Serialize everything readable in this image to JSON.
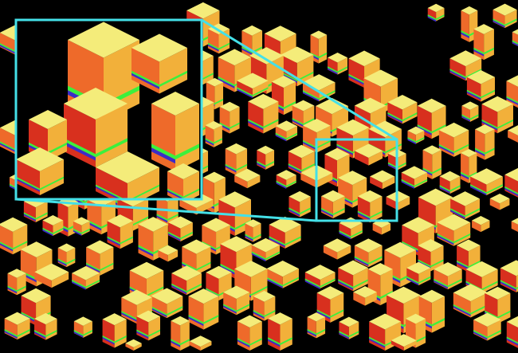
{
  "view": {
    "type": "3d-city-rendering-with-magnified-inset",
    "colors": {
      "background": "#000000",
      "highlight_frame": "#44e0e8",
      "roof": "#f4ec7a",
      "wall_light": "#f2b03a",
      "wall_warm": "#ee6a2a",
      "wall_dark": "#d8301e",
      "stripe_green": "#3cf03c",
      "stripe_blue": "#3a2cc8"
    }
  }
}
